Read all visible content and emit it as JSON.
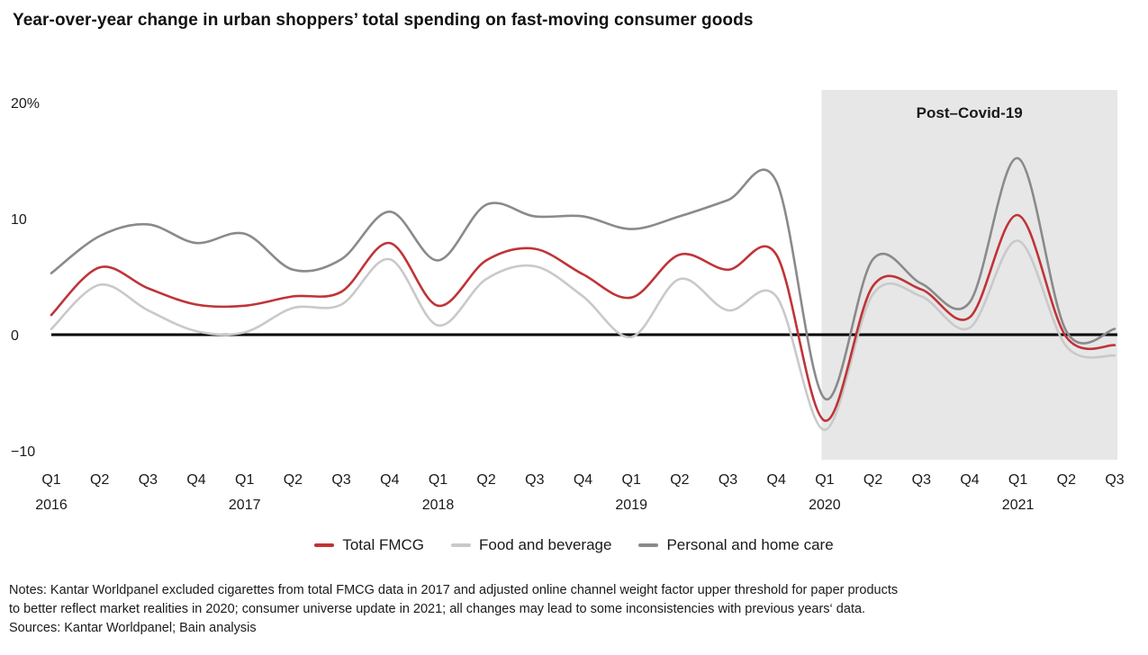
{
  "title": "Year-over-year change in urban shoppers’ total spending on fast-moving consumer goods",
  "chart_data": {
    "type": "line",
    "title": "Year-over-year change in urban shoppers’ total spending on fast-moving consumer goods",
    "unit": "percent year-over-year change",
    "x_labels": [
      "Q1",
      "Q2",
      "Q3",
      "Q4",
      "Q1",
      "Q2",
      "Q3",
      "Q4",
      "Q1",
      "Q2",
      "Q3",
      "Q4",
      "Q1",
      "Q2",
      "Q3",
      "Q4",
      "Q1",
      "Q2",
      "Q3",
      "Q4",
      "Q1",
      "Q2",
      "Q3"
    ],
    "x_years": [
      {
        "index": 0,
        "label": "2016"
      },
      {
        "index": 4,
        "label": "2017"
      },
      {
        "index": 8,
        "label": "2018"
      },
      {
        "index": 12,
        "label": "2019"
      },
      {
        "index": 16,
        "label": "2020"
      },
      {
        "index": 20,
        "label": "2021"
      }
    ],
    "yticks": [
      {
        "value": 20,
        "label": "20%"
      },
      {
        "value": 10,
        "label": "10"
      },
      {
        "value": 0,
        "label": "0"
      },
      {
        "value": -10,
        "label": "−10"
      }
    ],
    "ylim": [
      -10,
      20
    ],
    "grid": false,
    "legend_position": "bottom",
    "series": [
      {
        "name": "Total FMCG",
        "color": "#bf3437",
        "values": [
          1.7,
          5.8,
          4.0,
          2.6,
          2.5,
          3.3,
          3.7,
          7.9,
          2.5,
          6.4,
          7.4,
          5.2,
          3.2,
          6.9,
          5.6,
          6.9,
          -7.4,
          4.2,
          3.9,
          1.5,
          10.3,
          -0.2,
          -0.9
        ]
      },
      {
        "name": "Food and beverage",
        "color": "#c9c9c9",
        "values": [
          0.5,
          4.3,
          2.1,
          0.3,
          0.2,
          2.3,
          2.6,
          6.5,
          0.8,
          4.8,
          5.9,
          3.3,
          -0.2,
          4.8,
          2.1,
          3.3,
          -8.2,
          3.5,
          3.3,
          0.6,
          8.1,
          -1.0,
          -1.8
        ]
      },
      {
        "name": "Personal and home care",
        "color": "#8a8a8a",
        "values": [
          5.3,
          8.5,
          9.5,
          7.9,
          8.7,
          5.6,
          6.5,
          10.6,
          6.4,
          11.2,
          10.2,
          10.2,
          9.1,
          10.2,
          11.6,
          13.2,
          -5.5,
          6.5,
          4.4,
          2.8,
          15.2,
          0.3,
          0.5
        ]
      }
    ],
    "shaded_region": {
      "label": "Post–Covid-19",
      "start_x_label": "Q1 2020",
      "color": "#e7e7e7"
    }
  },
  "footnotes": {
    "notes_line1": "Notes: Kantar Worldpanel excluded cigarettes from total FMCG data in 2017 and adjusted online channel weight factor upper threshold for paper products",
    "notes_line2": "to better reflect market realities in 2020; consumer universe update in 2021; all changes may lead to some inconsistencies with previous years‘ data.",
    "sources": "Sources: Kantar Worldpanel; Bain analysis"
  }
}
